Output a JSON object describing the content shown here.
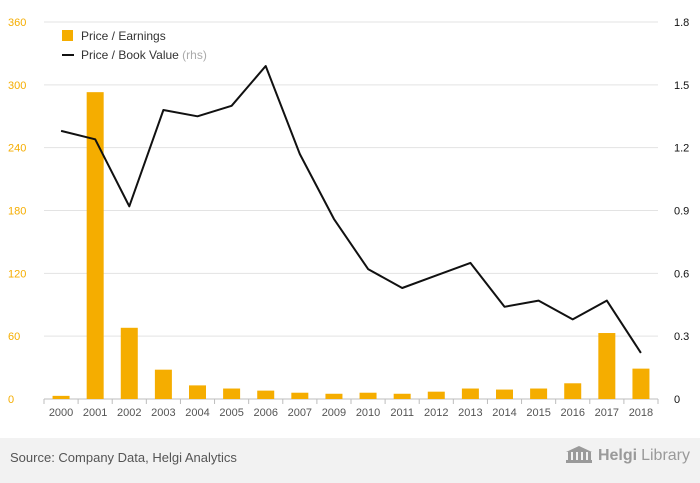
{
  "chart_data": {
    "type": "bar",
    "categories": [
      "2000",
      "2001",
      "2002",
      "2003",
      "2004",
      "2005",
      "2006",
      "2007",
      "2009",
      "2010",
      "2011",
      "2012",
      "2013",
      "2014",
      "2015",
      "2016",
      "2017",
      "2018"
    ],
    "series": [
      {
        "name": "Price / Earnings",
        "type": "bar",
        "axis": "left",
        "color": "#f5ad00",
        "values": [
          3,
          293,
          68,
          28,
          13,
          10,
          8,
          6,
          5,
          6,
          5,
          7,
          10,
          9,
          10,
          15,
          63,
          29
        ]
      },
      {
        "name": "Price / Book Value",
        "legend_suffix": "(rhs)",
        "type": "line",
        "axis": "right",
        "color": "#111111",
        "values": [
          1.28,
          1.24,
          0.92,
          1.38,
          1.35,
          1.4,
          1.59,
          1.17,
          0.86,
          0.62,
          0.53,
          0.59,
          0.65,
          0.44,
          0.47,
          0.38,
          0.47,
          0.22
        ]
      }
    ],
    "y_left": {
      "ticks": [
        "0",
        "60",
        "120",
        "180",
        "240",
        "300",
        "360"
      ],
      "lim": [
        0,
        360
      ],
      "color": "#f5ad00"
    },
    "y_right": {
      "ticks": [
        "0",
        "0.3",
        "0.6",
        "0.9",
        "1.2",
        "1.5",
        "1.8"
      ],
      "lim": [
        0,
        1.8
      ],
      "color": "#111111"
    },
    "grid": true,
    "legend_position": "top-left"
  },
  "footer": {
    "source": "Source: Company Data, Helgi Analytics",
    "logo_part1": "Helgi",
    "logo_part2": "Library"
  }
}
